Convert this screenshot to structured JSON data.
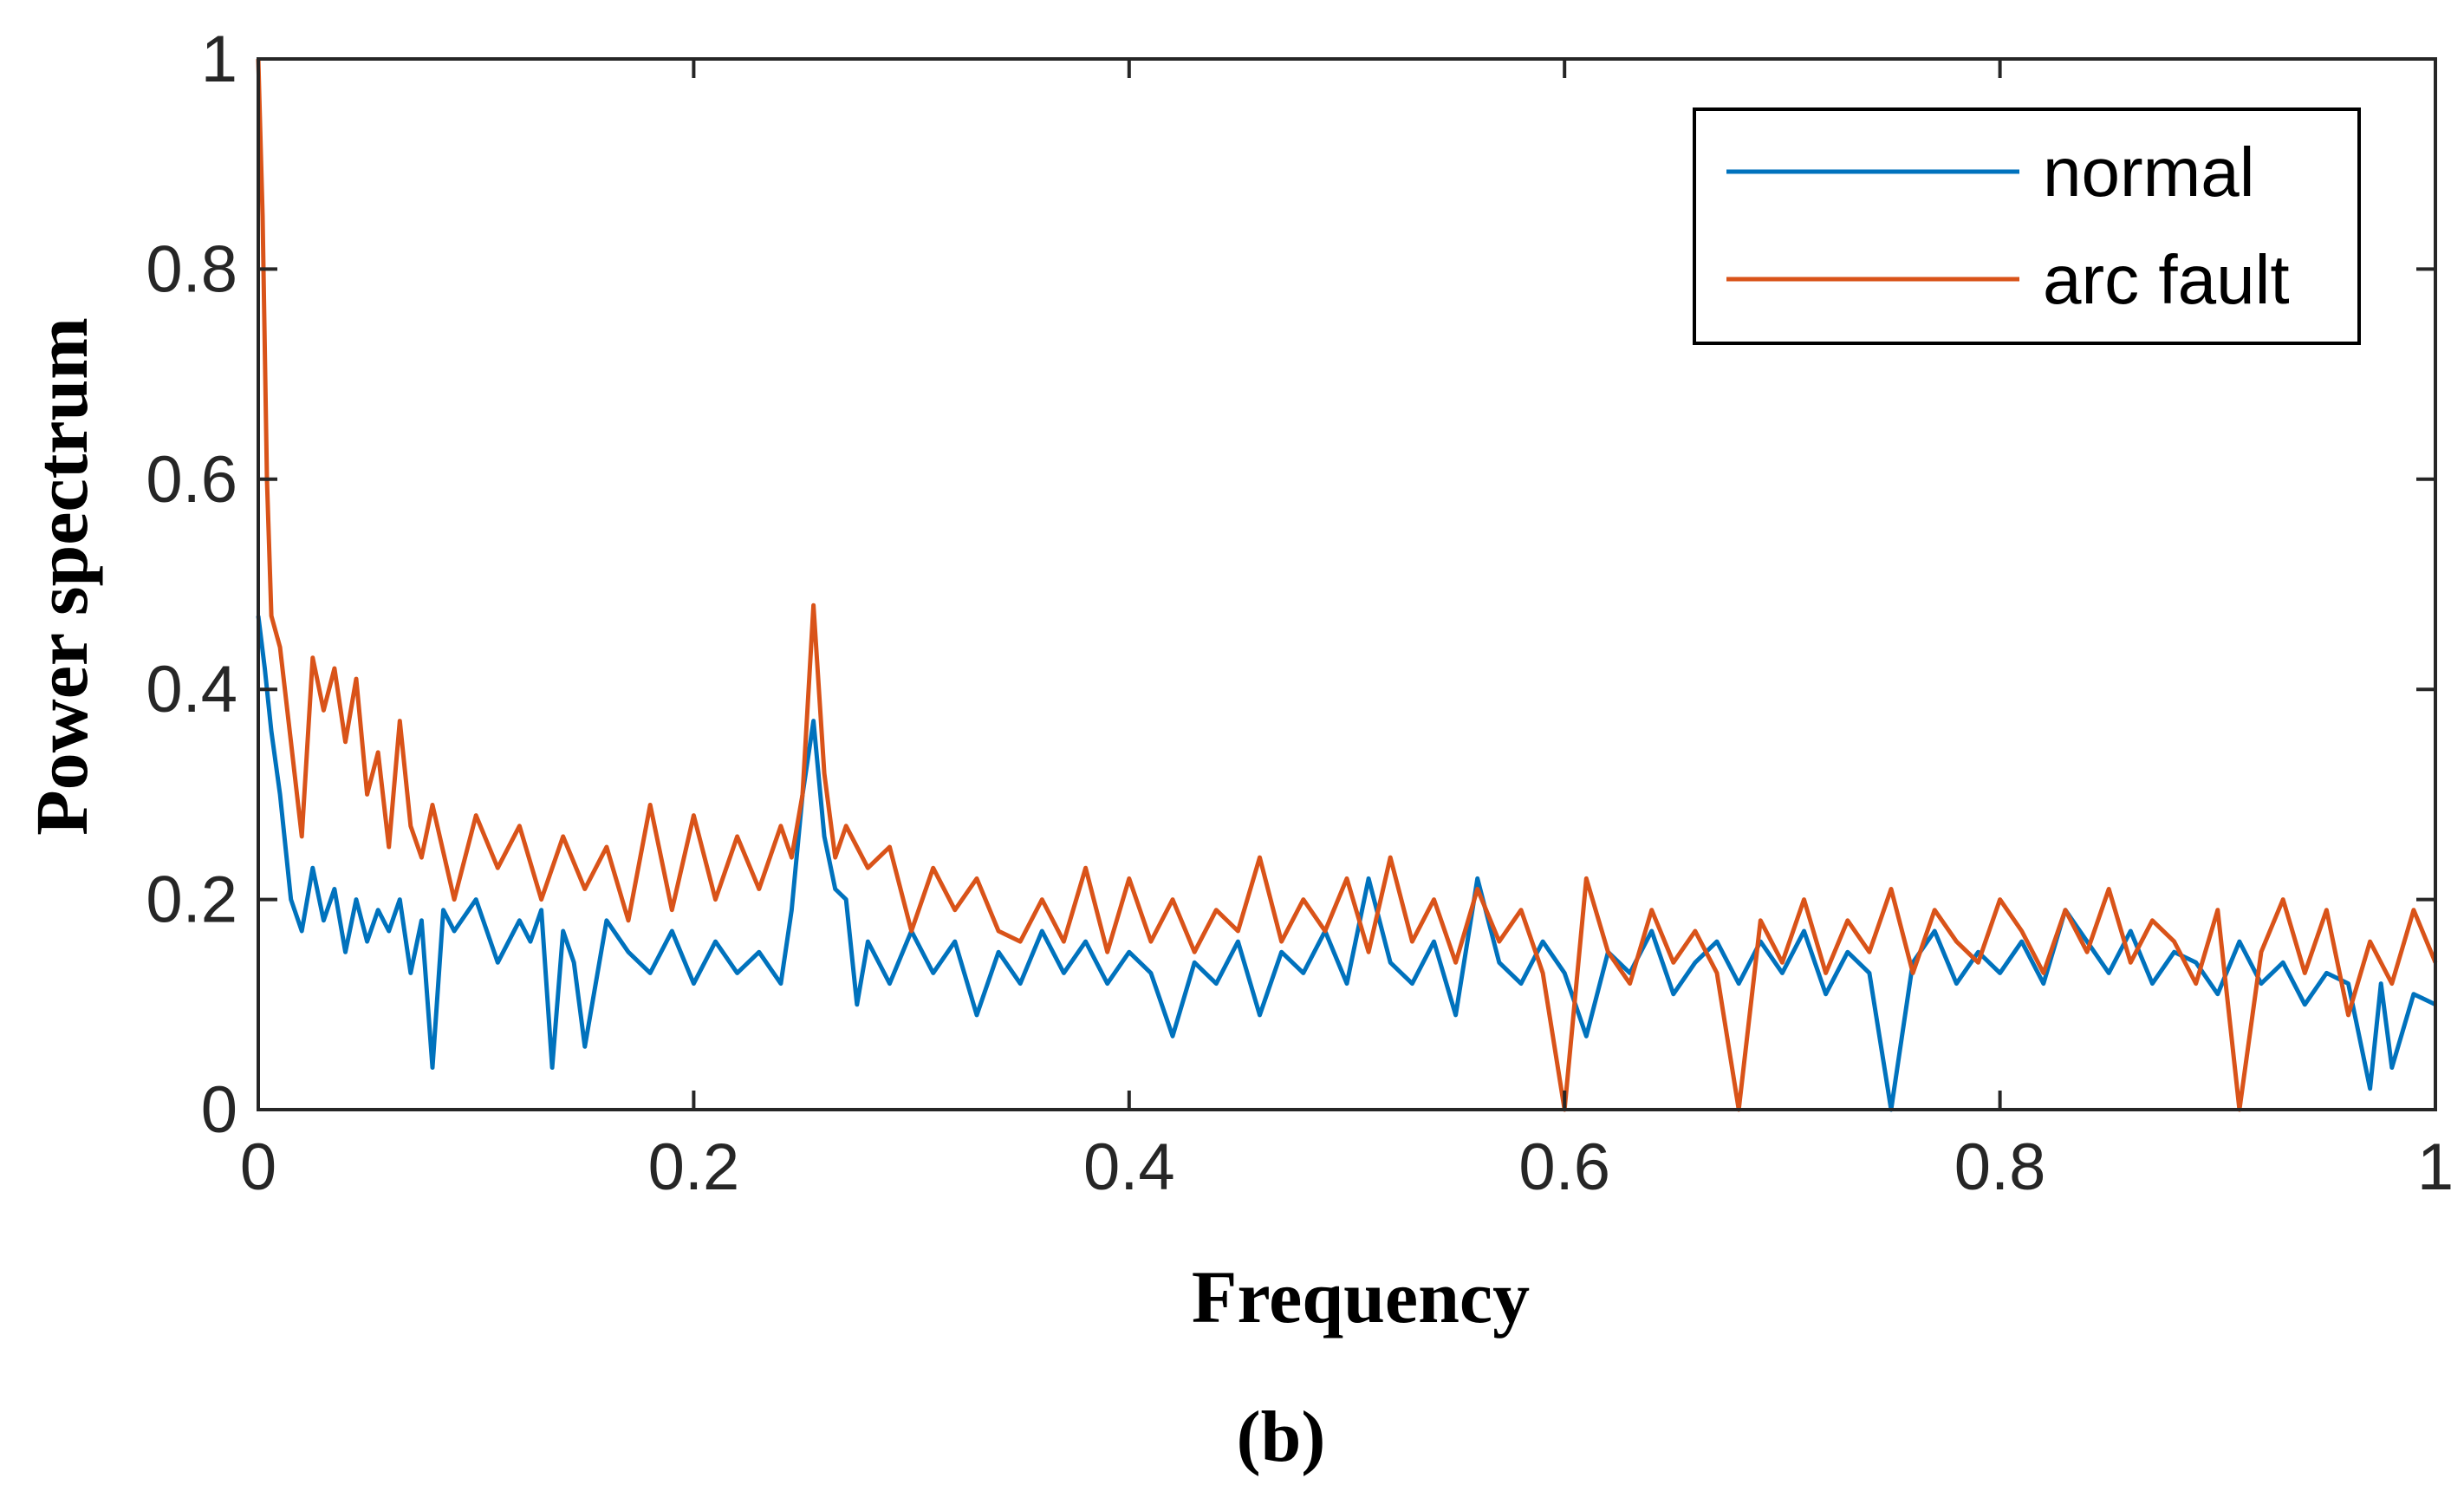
{
  "chart_data": {
    "type": "line",
    "title": "",
    "xlabel": "Frequency",
    "ylabel": "Power spectrum",
    "panel_label": "(b)",
    "xlim": [
      0,
      1
    ],
    "ylim": [
      0,
      1
    ],
    "xticks": [
      0,
      0.2,
      0.4,
      0.6,
      0.8,
      1
    ],
    "xtick_labels": [
      "0",
      "0.2",
      "0.4",
      "0.6",
      "0.8",
      "1"
    ],
    "yticks": [
      0,
      0.2,
      0.4,
      0.6,
      0.8,
      1
    ],
    "ytick_labels": [
      "0",
      "0.2",
      "0.4",
      "0.6",
      "0.8",
      "1"
    ],
    "grid": false,
    "legend_position": "top-right",
    "series": [
      {
        "name": "normal",
        "color": "#0072BD",
        "x": [
          0,
          0.003,
          0.006,
          0.01,
          0.015,
          0.02,
          0.025,
          0.03,
          0.035,
          0.04,
          0.045,
          0.05,
          0.055,
          0.06,
          0.065,
          0.07,
          0.075,
          0.08,
          0.085,
          0.09,
          0.1,
          0.11,
          0.12,
          0.125,
          0.13,
          0.135,
          0.14,
          0.145,
          0.15,
          0.16,
          0.17,
          0.18,
          0.19,
          0.2,
          0.21,
          0.22,
          0.23,
          0.24,
          0.245,
          0.25,
          0.255,
          0.26,
          0.265,
          0.27,
          0.275,
          0.28,
          0.29,
          0.3,
          0.31,
          0.32,
          0.33,
          0.34,
          0.35,
          0.36,
          0.37,
          0.38,
          0.39,
          0.4,
          0.41,
          0.42,
          0.43,
          0.44,
          0.45,
          0.46,
          0.47,
          0.48,
          0.49,
          0.5,
          0.51,
          0.52,
          0.53,
          0.54,
          0.55,
          0.56,
          0.57,
          0.58,
          0.59,
          0.6,
          0.61,
          0.62,
          0.63,
          0.64,
          0.65,
          0.66,
          0.67,
          0.68,
          0.69,
          0.7,
          0.71,
          0.72,
          0.73,
          0.74,
          0.75,
          0.76,
          0.77,
          0.78,
          0.79,
          0.8,
          0.81,
          0.82,
          0.83,
          0.84,
          0.85,
          0.86,
          0.87,
          0.88,
          0.89,
          0.9,
          0.91,
          0.92,
          0.93,
          0.94,
          0.95,
          0.96,
          0.965,
          0.97,
          0.975,
          0.98,
          0.99,
          1.0
        ],
        "values": [
          0.47,
          0.42,
          0.36,
          0.3,
          0.2,
          0.17,
          0.23,
          0.18,
          0.21,
          0.15,
          0.2,
          0.16,
          0.19,
          0.17,
          0.2,
          0.13,
          0.18,
          0.04,
          0.19,
          0.17,
          0.2,
          0.14,
          0.18,
          0.16,
          0.19,
          0.04,
          0.17,
          0.14,
          0.06,
          0.18,
          0.15,
          0.13,
          0.17,
          0.12,
          0.16,
          0.13,
          0.15,
          0.12,
          0.19,
          0.3,
          0.37,
          0.26,
          0.21,
          0.2,
          0.1,
          0.16,
          0.12,
          0.17,
          0.13,
          0.16,
          0.09,
          0.15,
          0.12,
          0.17,
          0.13,
          0.16,
          0.12,
          0.15,
          0.13,
          0.07,
          0.14,
          0.12,
          0.16,
          0.09,
          0.15,
          0.13,
          0.17,
          0.12,
          0.22,
          0.14,
          0.12,
          0.16,
          0.09,
          0.22,
          0.14,
          0.12,
          0.16,
          0.13,
          0.07,
          0.15,
          0.13,
          0.17,
          0.11,
          0.14,
          0.16,
          0.12,
          0.16,
          0.13,
          0.17,
          0.11,
          0.15,
          0.13,
          0.0,
          0.14,
          0.17,
          0.12,
          0.15,
          0.13,
          0.16,
          0.12,
          0.19,
          0.16,
          0.13,
          0.17,
          0.12,
          0.15,
          0.14,
          0.11,
          0.16,
          0.12,
          0.14,
          0.1,
          0.13,
          0.12,
          0.07,
          0.02,
          0.12,
          0.04,
          0.11,
          0.1
        ]
      },
      {
        "name": "arc fault",
        "color": "#D95319",
        "x": [
          0,
          0.002,
          0.004,
          0.006,
          0.01,
          0.015,
          0.02,
          0.025,
          0.03,
          0.035,
          0.04,
          0.045,
          0.05,
          0.055,
          0.06,
          0.065,
          0.07,
          0.075,
          0.08,
          0.09,
          0.1,
          0.11,
          0.12,
          0.13,
          0.14,
          0.15,
          0.16,
          0.17,
          0.18,
          0.19,
          0.2,
          0.21,
          0.22,
          0.23,
          0.24,
          0.245,
          0.25,
          0.255,
          0.26,
          0.265,
          0.27,
          0.28,
          0.29,
          0.3,
          0.31,
          0.32,
          0.33,
          0.34,
          0.35,
          0.36,
          0.37,
          0.38,
          0.39,
          0.4,
          0.41,
          0.42,
          0.43,
          0.44,
          0.45,
          0.46,
          0.47,
          0.48,
          0.49,
          0.5,
          0.51,
          0.52,
          0.53,
          0.54,
          0.55,
          0.56,
          0.57,
          0.58,
          0.59,
          0.6,
          0.61,
          0.62,
          0.63,
          0.64,
          0.65,
          0.66,
          0.67,
          0.68,
          0.69,
          0.7,
          0.71,
          0.72,
          0.73,
          0.74,
          0.75,
          0.76,
          0.77,
          0.78,
          0.79,
          0.8,
          0.81,
          0.82,
          0.83,
          0.84,
          0.85,
          0.86,
          0.87,
          0.88,
          0.89,
          0.9,
          0.91,
          0.92,
          0.93,
          0.94,
          0.95,
          0.96,
          0.97,
          0.98,
          0.99,
          1.0
        ],
        "values": [
          1.0,
          0.85,
          0.6,
          0.47,
          0.44,
          0.35,
          0.26,
          0.43,
          0.38,
          0.42,
          0.35,
          0.41,
          0.3,
          0.34,
          0.25,
          0.37,
          0.27,
          0.24,
          0.29,
          0.2,
          0.28,
          0.23,
          0.27,
          0.2,
          0.26,
          0.21,
          0.25,
          0.18,
          0.29,
          0.19,
          0.28,
          0.2,
          0.26,
          0.21,
          0.27,
          0.24,
          0.3,
          0.48,
          0.32,
          0.24,
          0.27,
          0.23,
          0.25,
          0.17,
          0.23,
          0.19,
          0.22,
          0.17,
          0.16,
          0.2,
          0.16,
          0.23,
          0.15,
          0.22,
          0.16,
          0.2,
          0.15,
          0.19,
          0.17,
          0.24,
          0.16,
          0.2,
          0.17,
          0.22,
          0.15,
          0.24,
          0.16,
          0.2,
          0.14,
          0.21,
          0.16,
          0.19,
          0.13,
          0.0,
          0.22,
          0.15,
          0.12,
          0.19,
          0.14,
          0.17,
          0.13,
          0.0,
          0.18,
          0.14,
          0.2,
          0.13,
          0.18,
          0.15,
          0.21,
          0.13,
          0.19,
          0.16,
          0.14,
          0.2,
          0.17,
          0.13,
          0.19,
          0.15,
          0.21,
          0.14,
          0.18,
          0.16,
          0.12,
          0.19,
          0.0,
          0.15,
          0.2,
          0.13,
          0.19,
          0.09,
          0.16,
          0.12,
          0.19,
          0.14
        ]
      }
    ]
  }
}
